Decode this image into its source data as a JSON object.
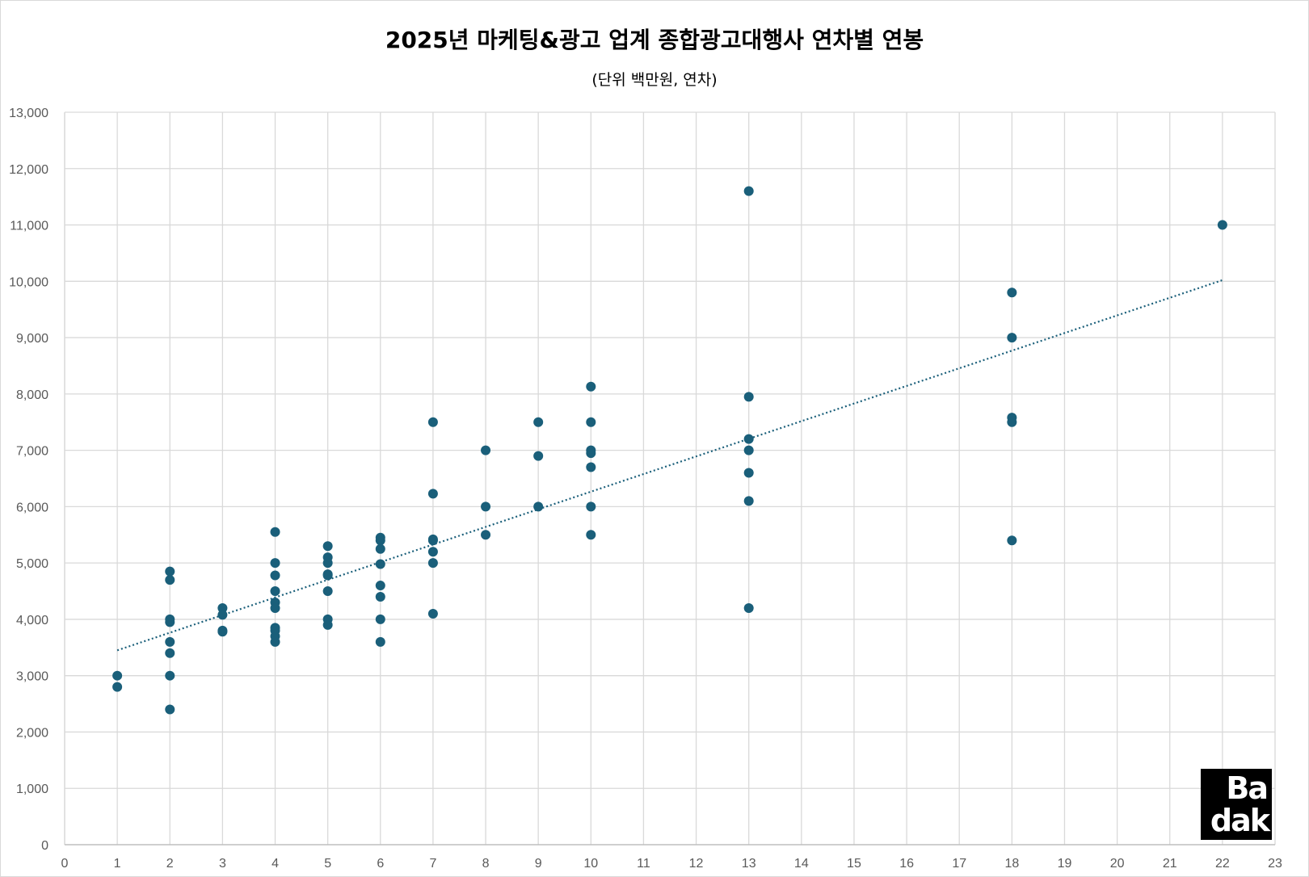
{
  "chart_data": {
    "type": "scatter",
    "title": "2025년 마케팅&광고 업계 종합광고대행사 연차별 연봉",
    "subtitle": "(단위 백만원, 연차)",
    "xlabel": "",
    "ylabel": "",
    "xlim": [
      0,
      23
    ],
    "ylim": [
      0,
      13000
    ],
    "x_ticks": [
      0,
      1,
      2,
      3,
      4,
      5,
      6,
      7,
      8,
      9,
      10,
      11,
      12,
      13,
      14,
      15,
      16,
      17,
      18,
      19,
      20,
      21,
      22,
      23
    ],
    "y_ticks": [
      0,
      1000,
      2000,
      3000,
      4000,
      5000,
      6000,
      7000,
      8000,
      9000,
      10000,
      11000,
      12000,
      13000
    ],
    "y_tick_labels": [
      "0",
      "1,000",
      "2,000",
      "3,000",
      "4,000",
      "5,000",
      "6,000",
      "7,000",
      "8,000",
      "9,000",
      "10,000",
      "11,000",
      "12,000",
      "13,000"
    ],
    "grid": true,
    "legend": "none",
    "point_color": "#1a5f7a",
    "trendline": {
      "type": "linear",
      "style": "dotted",
      "color": "#1a5f7a",
      "x": [
        1,
        22
      ],
      "y": [
        3450,
        10020
      ]
    },
    "points": [
      [
        1,
        3000
      ],
      [
        1,
        2800
      ],
      [
        2,
        4850
      ],
      [
        2,
        4700
      ],
      [
        2,
        4000
      ],
      [
        2,
        3950
      ],
      [
        2,
        3600
      ],
      [
        2,
        3400
      ],
      [
        2,
        3000
      ],
      [
        2,
        2400
      ],
      [
        3,
        4200
      ],
      [
        3,
        4080
      ],
      [
        3,
        3800
      ],
      [
        3,
        3780
      ],
      [
        4,
        5550
      ],
      [
        4,
        5000
      ],
      [
        4,
        4780
      ],
      [
        4,
        4500
      ],
      [
        4,
        4300
      ],
      [
        4,
        4200
      ],
      [
        4,
        3850
      ],
      [
        4,
        3800
      ],
      [
        4,
        3700
      ],
      [
        4,
        3600
      ],
      [
        5,
        5300
      ],
      [
        5,
        5100
      ],
      [
        5,
        5000
      ],
      [
        5,
        4800
      ],
      [
        5,
        4780
      ],
      [
        5,
        4500
      ],
      [
        5,
        4000
      ],
      [
        5,
        3900
      ],
      [
        6,
        5450
      ],
      [
        6,
        5400
      ],
      [
        6,
        5250
      ],
      [
        6,
        4980
      ],
      [
        6,
        4600
      ],
      [
        6,
        4400
      ],
      [
        6,
        4000
      ],
      [
        6,
        3600
      ],
      [
        7,
        7500
      ],
      [
        7,
        6230
      ],
      [
        7,
        5420
      ],
      [
        7,
        5400
      ],
      [
        7,
        5200
      ],
      [
        7,
        5000
      ],
      [
        7,
        4100
      ],
      [
        8,
        7000
      ],
      [
        8,
        6000
      ],
      [
        8,
        5500
      ],
      [
        9,
        7500
      ],
      [
        9,
        6900
      ],
      [
        9,
        6000
      ],
      [
        10,
        8130
      ],
      [
        10,
        7500
      ],
      [
        10,
        7000
      ],
      [
        10,
        6950
      ],
      [
        10,
        6700
      ],
      [
        10,
        6000
      ],
      [
        10,
        5500
      ],
      [
        13,
        11600
      ],
      [
        13,
        7950
      ],
      [
        13,
        7200
      ],
      [
        13,
        7000
      ],
      [
        13,
        6600
      ],
      [
        13,
        6100
      ],
      [
        13,
        4200
      ],
      [
        18,
        9800
      ],
      [
        18,
        9000
      ],
      [
        18,
        7580
      ],
      [
        18,
        7500
      ],
      [
        18,
        5400
      ],
      [
        22,
        11000
      ]
    ]
  },
  "logo": {
    "line1": "Ba",
    "line2": "dak"
  }
}
